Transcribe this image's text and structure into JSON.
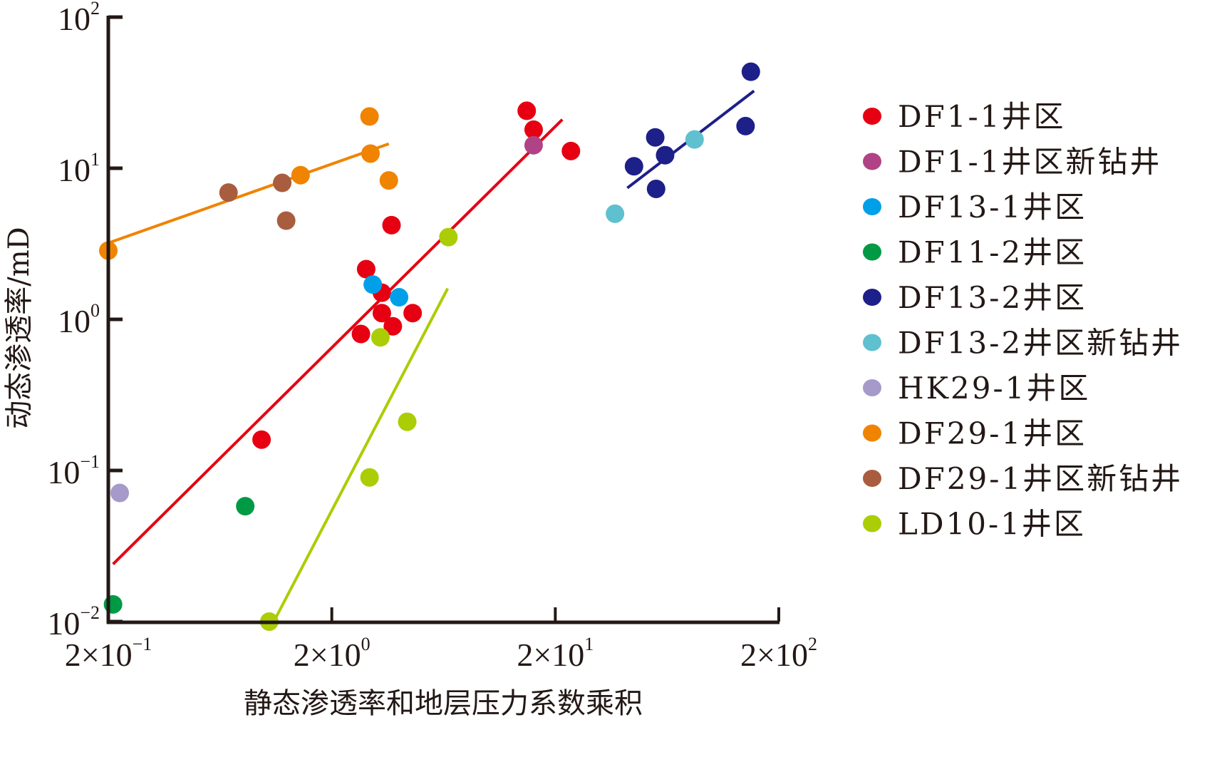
{
  "chart_data": {
    "type": "scatter",
    "title": "",
    "xlabel": "静态渗透率和地层压力系数乘积",
    "ylabel": "动态渗透率/mD",
    "xscale": "log",
    "yscale": "log",
    "xlim": [
      0.2,
      200
    ],
    "ylim": [
      0.01,
      100
    ],
    "grid": false,
    "legend_position": "right",
    "x_ticks": [
      {
        "value": 0.2,
        "base": "2×10",
        "exp": "−1"
      },
      {
        "value": 2,
        "base": "2×10",
        "exp": "0"
      },
      {
        "value": 20,
        "base": "2×10",
        "exp": "1"
      },
      {
        "value": 200,
        "base": "2×10",
        "exp": "2"
      }
    ],
    "y_ticks": [
      {
        "value": 100,
        "base": "10",
        "exp": "2"
      },
      {
        "value": 10,
        "base": "10",
        "exp": "1"
      },
      {
        "value": 1,
        "base": "10",
        "exp": "0"
      },
      {
        "value": 0.1,
        "base": "10",
        "exp": "−1"
      },
      {
        "value": 0.01,
        "base": "10",
        "exp": "−2"
      }
    ],
    "series": [
      {
        "name": "DF1-1井区",
        "color": "#e60012",
        "points": [
          [
            0.97,
            0.16
          ],
          [
            2.7,
            0.8
          ],
          [
            2.85,
            2.15
          ],
          [
            3.35,
            1.1
          ],
          [
            3.35,
            1.5
          ],
          [
            3.7,
            4.2
          ],
          [
            3.75,
            0.9
          ],
          [
            4.6,
            1.1
          ],
          [
            14.9,
            24
          ],
          [
            16.0,
            18
          ],
          [
            23.5,
            13
          ]
        ]
      },
      {
        "name": "DF1-1井区新钻井",
        "color": "#b04385",
        "points": [
          [
            16.0,
            14.2
          ]
        ]
      },
      {
        "name": "DF13-1井区",
        "color": "#00a0e9",
        "points": [
          [
            3.05,
            1.7
          ],
          [
            4.0,
            1.4
          ]
        ]
      },
      {
        "name": "DF11-2井区",
        "color": "#009944",
        "points": [
          [
            0.21,
            0.013
          ],
          [
            0.82,
            0.058
          ]
        ]
      },
      {
        "name": "DF13-2井区",
        "color": "#1d2088",
        "points": [
          [
            45,
            10.3
          ],
          [
            56,
            16
          ],
          [
            56.5,
            7.3
          ],
          [
            62,
            12.2
          ],
          [
            142,
            19
          ],
          [
            150,
            43.5
          ]
        ]
      },
      {
        "name": "DF13-2井区新钻井",
        "color": "#5fc0cf",
        "points": [
          [
            37,
            5
          ],
          [
            84,
            15.5
          ]
        ]
      },
      {
        "name": "HK29-1井区",
        "color": "#a59aca",
        "points": [
          [
            0.225,
            0.071
          ]
        ]
      },
      {
        "name": "DF29-1井区",
        "color": "#f08300",
        "points": [
          [
            0.2,
            2.85
          ],
          [
            1.45,
            9.0
          ],
          [
            2.95,
            22
          ],
          [
            2.98,
            12.5
          ],
          [
            3.6,
            8.3
          ]
        ]
      },
      {
        "name": "DF29-1井区新钻井",
        "color": "#a95d3f",
        "points": [
          [
            0.69,
            6.9
          ],
          [
            1.2,
            8.0
          ],
          [
            1.25,
            4.5
          ]
        ]
      },
      {
        "name": "LD10-1井区",
        "color": "#aacd06",
        "points": [
          [
            1.05,
            0.01
          ],
          [
            2.95,
            0.09
          ],
          [
            3.3,
            0.76
          ],
          [
            4.35,
            0.21
          ],
          [
            6.65,
            3.5
          ]
        ]
      }
    ],
    "trendlines": [
      {
        "series": "DF1-1井区",
        "color": "#e60012",
        "from": [
          0.21,
          0.024
        ],
        "to": [
          21.5,
          21
        ]
      },
      {
        "series": "DF29-1井区",
        "color": "#f08300",
        "from": [
          0.2,
          3.2
        ],
        "to": [
          3.6,
          14.5
        ]
      },
      {
        "series": "DF13-2井区",
        "color": "#1d2088",
        "from": [
          42,
          7.4
        ],
        "to": [
          155,
          32.5
        ]
      },
      {
        "series": "LD10-1井区",
        "color": "#aacd06",
        "from": [
          1.1,
          0.01
        ],
        "to": [
          6.6,
          1.6
        ]
      }
    ]
  }
}
